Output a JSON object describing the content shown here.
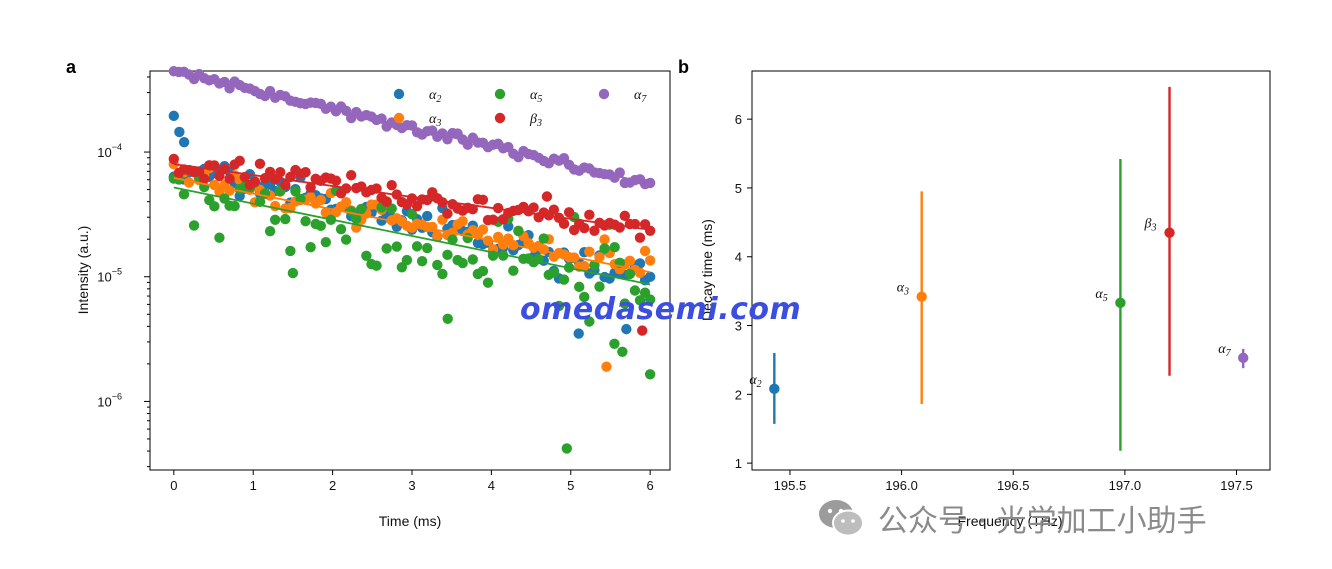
{
  "panels": {
    "a": "a",
    "b": "b"
  },
  "watermarks": {
    "site": "omedasemi.com",
    "wechat": "公众号 · 光学加工小助手"
  },
  "chart_data": [
    {
      "type": "scatter",
      "xlabel": "Time (ms)",
      "ylabel": "Intensity (a.u.)",
      "yscale": "log",
      "xlim": [
        -0.3,
        6.25
      ],
      "ylim_exp": [
        -6.55,
        -3.35
      ],
      "xticks": [
        0,
        1,
        2,
        3,
        4,
        5,
        6
      ],
      "yticks": [
        {
          "value": 0.0001,
          "label": "10",
          "exp": "−4"
        },
        {
          "value": 1e-05,
          "label": "10",
          "exp": "−5"
        },
        {
          "value": 1e-06,
          "label": "10",
          "exp": "−6"
        }
      ],
      "legend_position": "top-right",
      "series": [
        {
          "name": "α",
          "sub": "2",
          "color": "#1f77b4",
          "y0": 8e-05,
          "tau": 2.85,
          "fit": false,
          "spread": 0.07
        },
        {
          "name": "α",
          "sub": "3",
          "color": "#ff7f0e",
          "y0": 6.5e-05,
          "tau": 3.45,
          "fit": true,
          "fit_y0": 6.2e-05,
          "spread": 0.06
        },
        {
          "name": "α",
          "sub": "5",
          "color": "#2ca02c",
          "y0": 5.2e-05,
          "tau": 3.35,
          "fit": true,
          "fit_y0": 5.2e-05,
          "spread": 0.17
        },
        {
          "name": "β",
          "sub": "3",
          "color": "#d62728",
          "y0": 8e-05,
          "tau": 4.95,
          "fit": true,
          "fit_y0": 8e-05,
          "spread": 0.05
        },
        {
          "name": "α",
          "sub": "7",
          "color": "#9467bd",
          "y0": 0.00044,
          "tau": 2.9,
          "fit": true,
          "fit_y0": 0.00044,
          "spread": 0.02
        }
      ],
      "outliers": [
        {
          "series": 0,
          "x": 0.0,
          "y": 0.000195
        },
        {
          "series": 0,
          "x": 0.07,
          "y": 0.000145
        },
        {
          "series": 0,
          "x": 0.13,
          "y": 0.00012
        },
        {
          "series": 0,
          "x": 5.1,
          "y": 3.5e-06
        },
        {
          "series": 0,
          "x": 5.7,
          "y": 3.8e-06
        },
        {
          "series": 1,
          "x": 5.45,
          "y": 1.9e-06
        },
        {
          "series": 2,
          "x": 1.5,
          "y": 1.07e-05
        },
        {
          "series": 2,
          "x": 3.45,
          "y": 4.6e-06
        },
        {
          "series": 2,
          "x": 4.95,
          "y": 4.2e-07
        },
        {
          "series": 2,
          "x": 6.0,
          "y": 1.65e-06
        },
        {
          "series": 2,
          "x": 5.65,
          "y": 2.5e-06
        },
        {
          "series": 2,
          "x": 5.55,
          "y": 2.9e-06
        },
        {
          "series": 3,
          "x": 5.9,
          "y": 3.7e-06
        },
        {
          "series": 3,
          "x": 4.7,
          "y": 4.4e-05
        }
      ]
    },
    {
      "type": "scatter",
      "xlabel": "Frequency (THz)",
      "ylabel": "Decay time (ms)",
      "xlim": [
        195.33,
        197.65
      ],
      "ylim": [
        0.9,
        6.7
      ],
      "xticks": [
        195.5,
        196.0,
        196.5,
        197.0,
        197.5
      ],
      "yticks": [
        1,
        2,
        3,
        4,
        5,
        6
      ],
      "points": [
        {
          "name": "α",
          "sub": "2",
          "color": "#1f77b4",
          "x": 195.43,
          "y": 2.08,
          "ylo": 1.57,
          "yhi": 2.6
        },
        {
          "name": "α",
          "sub": "3",
          "color": "#ff7f0e",
          "x": 196.09,
          "y": 3.42,
          "ylo": 1.86,
          "yhi": 4.95
        },
        {
          "name": "α",
          "sub": "5",
          "color": "#2ca02c",
          "x": 196.98,
          "y": 3.33,
          "ylo": 1.18,
          "yhi": 5.42
        },
        {
          "name": "β",
          "sub": "3",
          "color": "#d62728",
          "x": 197.2,
          "y": 4.35,
          "ylo": 2.27,
          "yhi": 6.47
        },
        {
          "name": "α",
          "sub": "7",
          "color": "#9467bd",
          "x": 197.53,
          "y": 2.53,
          "ylo": 2.38,
          "yhi": 2.66
        }
      ]
    }
  ]
}
